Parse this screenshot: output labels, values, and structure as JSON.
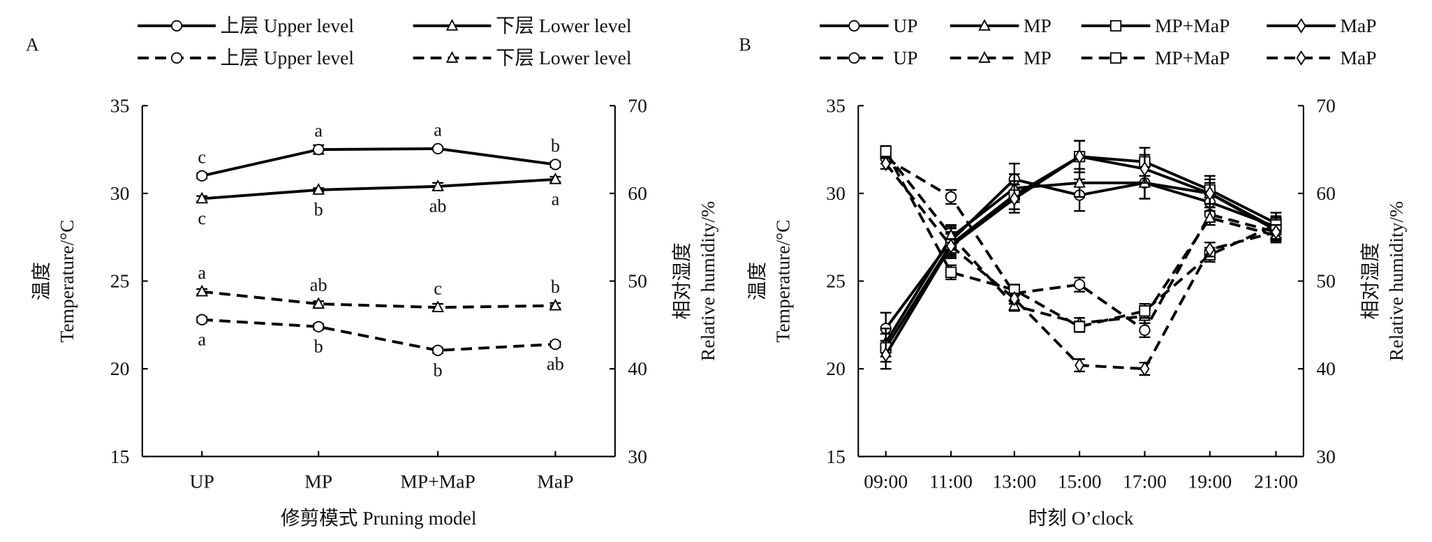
{
  "chart_data": [
    {
      "panel_label": "A",
      "type": "line",
      "categories": [
        "UP",
        "MP",
        "MP+MaP",
        "MaP"
      ],
      "xlabel": "修剪模式 Pruning model",
      "ylabel_cn": "温度",
      "ylabel": "Temperature/°C",
      "y2label_cn": "相对湿度",
      "y2label": "Relative humidity/%",
      "ylim": [
        15,
        35
      ],
      "y2lim": [
        30,
        70
      ],
      "yticks": [
        "15",
        "20",
        "25",
        "30",
        "35"
      ],
      "y2ticks": [
        "30",
        "40",
        "50",
        "60",
        "70"
      ],
      "legend_position": "top",
      "series": [
        {
          "name": "上层 Upper level",
          "axis": "temperature",
          "marker": "circle",
          "dash": false,
          "values": [
            31.0,
            32.5,
            32.55,
            31.65
          ],
          "err": [
            0.15,
            0.25,
            0.1,
            0.15
          ],
          "letters": [
            "c",
            "a",
            "a",
            "b"
          ],
          "letter_pos": "above"
        },
        {
          "name": "下层 Lower level",
          "axis": "temperature",
          "marker": "triangle",
          "dash": false,
          "values": [
            29.7,
            30.2,
            30.4,
            30.8
          ],
          "err": [
            0.15,
            0.1,
            0.2,
            0.15
          ],
          "letters": [
            "c",
            "b",
            "ab",
            "a"
          ],
          "letter_pos": "below"
        },
        {
          "name": "上层 Upper level",
          "axis": "humidity",
          "marker": "circle",
          "dash": true,
          "values": [
            45.6,
            44.8,
            42.1,
            42.8
          ],
          "err": [
            0.3,
            0.3,
            0.3,
            0.3
          ],
          "letters": [
            "a",
            "b",
            "b",
            "ab"
          ],
          "letter_pos": "below"
        },
        {
          "name": "下层 Lower level",
          "axis": "humidity",
          "marker": "triangle",
          "dash": true,
          "values": [
            48.8,
            47.4,
            47.0,
            47.2
          ],
          "err": [
            0.3,
            0.3,
            0.4,
            0.3
          ],
          "letters": [
            "a",
            "ab",
            "c",
            "b"
          ],
          "letter_pos": "above"
        }
      ]
    },
    {
      "panel_label": "B",
      "type": "line",
      "categories": [
        "09:00",
        "11:00",
        "13:00",
        "15:00",
        "17:00",
        "19:00",
        "21:00"
      ],
      "xlabel": "时刻 O’clock",
      "ylabel_cn": "温度",
      "ylabel": "Temperature/°C",
      "y2label_cn": "相对湿度",
      "y2label": "Relative humidity/%",
      "ylim": [
        15,
        35
      ],
      "y2lim": [
        30,
        70
      ],
      "yticks": [
        "15",
        "20",
        "25",
        "30",
        "35"
      ],
      "y2ticks": [
        "30",
        "40",
        "50",
        "60",
        "70"
      ],
      "legend_position": "top",
      "series": [
        {
          "name": "UP",
          "axis": "temperature",
          "marker": "circle",
          "dash": false,
          "values": [
            22.3,
            27.3,
            30.8,
            29.9,
            30.6,
            29.5,
            28.1
          ],
          "err": [
            0.9,
            0.8,
            0.9,
            0.9,
            0.9,
            0.6,
            0.6
          ]
        },
        {
          "name": "MP",
          "axis": "temperature",
          "marker": "triangle",
          "dash": false,
          "values": [
            21.5,
            27.5,
            30.3,
            30.6,
            30.6,
            30.0,
            27.9
          ],
          "err": [
            0.8,
            0.7,
            0.8,
            0.8,
            0.9,
            0.6,
            0.6
          ]
        },
        {
          "name": "MP+MaP",
          "axis": "temperature",
          "marker": "square",
          "dash": false,
          "values": [
            21.2,
            27.1,
            29.9,
            32.1,
            31.8,
            30.2,
            28.3
          ],
          "err": [
            0.8,
            0.7,
            0.8,
            0.9,
            0.8,
            0.8,
            0.6
          ]
        },
        {
          "name": "MaP",
          "axis": "temperature",
          "marker": "diamond",
          "dash": false,
          "values": [
            20.8,
            27.0,
            29.7,
            32.1,
            31.4,
            30.0,
            28.0
          ],
          "err": [
            0.8,
            0.7,
            0.8,
            0.9,
            0.8,
            0.8,
            0.6
          ]
        },
        {
          "name": "UP",
          "axis": "humidity",
          "marker": "circle",
          "dash": true,
          "values": [
            64.0,
            59.6,
            48.6,
            49.6,
            44.4,
            57.6,
            55.6
          ],
          "err": [
            0.6,
            0.8,
            0.8,
            0.8,
            0.8,
            0.8,
            0.8
          ]
        },
        {
          "name": "MP",
          "axis": "humidity",
          "marker": "triangle",
          "dash": true,
          "values": [
            64.6,
            55.2,
            47.2,
            45.2,
            46.0,
            57.2,
            55.2
          ],
          "err": [
            0.6,
            0.8,
            0.6,
            0.6,
            0.8,
            0.8,
            0.8
          ]
        },
        {
          "name": "MP+MaP",
          "axis": "humidity",
          "marker": "square",
          "dash": true,
          "values": [
            64.8,
            51.0,
            49.0,
            44.8,
            46.6,
            53.0,
            56.4
          ],
          "err": [
            0.6,
            0.8,
            0.6,
            0.6,
            0.8,
            0.8,
            0.8
          ]
        },
        {
          "name": "MaP",
          "axis": "humidity",
          "marker": "diamond",
          "dash": true,
          "values": [
            63.4,
            54.0,
            48.0,
            40.4,
            40.0,
            53.6,
            55.6
          ],
          "err": [
            0.6,
            0.8,
            0.6,
            0.7,
            0.7,
            0.8,
            0.8
          ]
        }
      ]
    }
  ]
}
